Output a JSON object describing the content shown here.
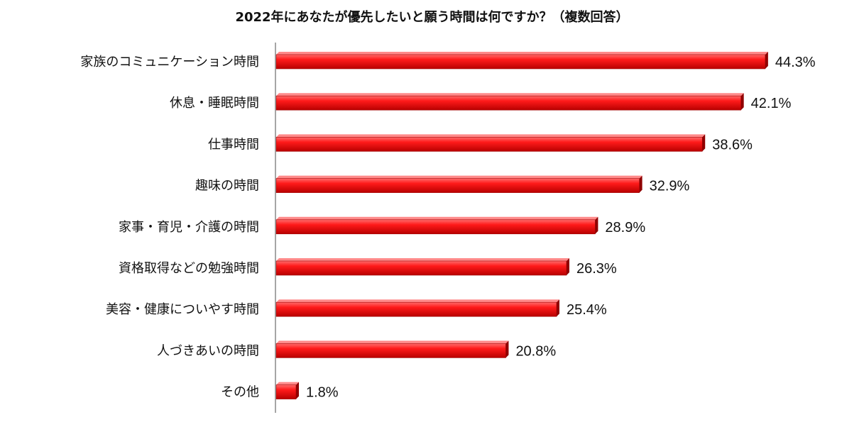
{
  "chart_data": {
    "type": "bar",
    "orientation": "horizontal",
    "title": "2022年にあなたが優先したいと願う時間は何ですか？（複数回答）",
    "categories": [
      "家族のコミュニケーション時間",
      "休息・睡眠時間",
      "仕事時間",
      "趣味の時間",
      "家事・育児・介護の時間",
      "資格取得などの勉強時間",
      "美容・健康についやす時間",
      "人づきあいの時間",
      "その他"
    ],
    "values": [
      44.3,
      42.1,
      38.6,
      32.9,
      28.9,
      26.3,
      25.4,
      20.8,
      1.8
    ],
    "value_labels": [
      "44.3%",
      "42.1%",
      "38.6%",
      "32.9%",
      "28.9%",
      "26.3%",
      "25.4%",
      "20.8%",
      "1.8%"
    ],
    "unit": "%",
    "xlim": [
      0,
      50
    ],
    "grid": false,
    "legend": "none",
    "bar_color": "#e8000b"
  }
}
